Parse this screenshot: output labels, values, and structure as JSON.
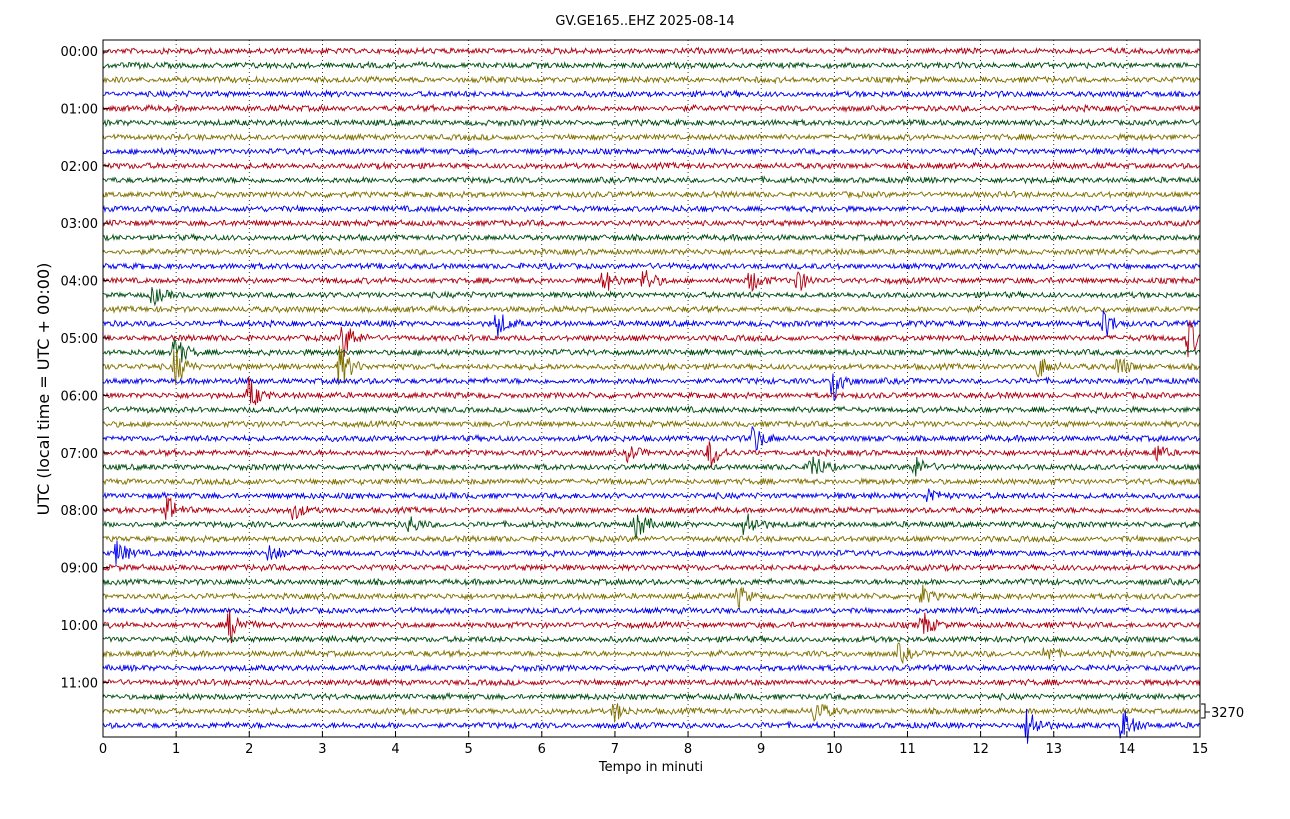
{
  "chart_data": {
    "type": "line",
    "subtype": "helicorder",
    "title": "GV.GE165..EHZ 2025-08-14",
    "xlabel": "Tempo in minuti",
    "ylabel": "UTC (local time = UTC + 00:00)",
    "xlim": [
      0,
      15
    ],
    "xticks": [
      "0",
      "1",
      "2",
      "3",
      "4",
      "5",
      "6",
      "7",
      "8",
      "9",
      "10",
      "11",
      "12",
      "13",
      "14",
      "15"
    ],
    "y_tick_labels": [
      "00:00",
      "01:00",
      "02:00",
      "03:00",
      "04:00",
      "05:00",
      "06:00",
      "07:00",
      "08:00",
      "09:00",
      "10:00",
      "11:00"
    ],
    "trace_count": 48,
    "trace_minutes": 15,
    "trace_colors": [
      "#b00010",
      "#004d10",
      "#807000",
      "#0000ee"
    ],
    "scale_label": "3270",
    "grid": "vertical dotted at each minute",
    "events": [
      {
        "trace": 17,
        "minute": 0.7,
        "amp": 1.0
      },
      {
        "trace": 19,
        "minute": 5.4,
        "amp": 1.4
      },
      {
        "trace": 19,
        "minute": 13.7,
        "amp": 1.6
      },
      {
        "trace": 20,
        "minute": 3.3,
        "amp": 2.0
      },
      {
        "trace": 20,
        "minute": 14.85,
        "amp": 2.2
      },
      {
        "trace": 21,
        "minute": 1.0,
        "amp": 1.8
      },
      {
        "trace": 22,
        "minute": 1.0,
        "amp": 2.2
      },
      {
        "trace": 22,
        "minute": 3.25,
        "amp": 2.6
      },
      {
        "trace": 22,
        "minute": 12.8,
        "amp": 1.3
      },
      {
        "trace": 22,
        "minute": 13.9,
        "amp": 1.2
      },
      {
        "trace": 23,
        "minute": 10.0,
        "amp": 2.4
      },
      {
        "trace": 24,
        "minute": 2.0,
        "amp": 2.0
      },
      {
        "trace": 27,
        "minute": 8.9,
        "amp": 1.6
      },
      {
        "trace": 28,
        "minute": 8.3,
        "amp": 1.8
      },
      {
        "trace": 28,
        "minute": 7.2,
        "amp": 1.0
      },
      {
        "trace": 28,
        "minute": 14.4,
        "amp": 1.0
      },
      {
        "trace": 29,
        "minute": 9.7,
        "amp": 1.7
      },
      {
        "trace": 29,
        "minute": 11.1,
        "amp": 1.2
      },
      {
        "trace": 31,
        "minute": 11.3,
        "amp": 1.0
      },
      {
        "trace": 32,
        "minute": 0.9,
        "amp": 1.4
      },
      {
        "trace": 32,
        "minute": 2.6,
        "amp": 1.0
      },
      {
        "trace": 33,
        "minute": 7.3,
        "amp": 1.6
      },
      {
        "trace": 33,
        "minute": 8.8,
        "amp": 1.6
      },
      {
        "trace": 33,
        "minute": 4.2,
        "amp": 1.0
      },
      {
        "trace": 35,
        "minute": 0.2,
        "amp": 1.4
      },
      {
        "trace": 35,
        "minute": 2.3,
        "amp": 1.0
      },
      {
        "trace": 38,
        "minute": 8.7,
        "amp": 1.1
      },
      {
        "trace": 38,
        "minute": 11.2,
        "amp": 1.2
      },
      {
        "trace": 40,
        "minute": 1.75,
        "amp": 1.9
      },
      {
        "trace": 40,
        "minute": 11.2,
        "amp": 1.5
      },
      {
        "trace": 42,
        "minute": 10.9,
        "amp": 1.1
      },
      {
        "trace": 42,
        "minute": 12.9,
        "amp": 1.0
      },
      {
        "trace": 46,
        "minute": 7.0,
        "amp": 1.1
      },
      {
        "trace": 46,
        "minute": 9.75,
        "amp": 1.4
      },
      {
        "trace": 47,
        "minute": 12.65,
        "amp": 2.2
      },
      {
        "trace": 47,
        "minute": 13.95,
        "amp": 1.9
      },
      {
        "trace": 16,
        "minute": 6.85,
        "amp": 1.4
      },
      {
        "trace": 16,
        "minute": 7.4,
        "amp": 1.4
      },
      {
        "trace": 16,
        "minute": 8.85,
        "amp": 1.3
      },
      {
        "trace": 16,
        "minute": 9.5,
        "amp": 1.3
      }
    ]
  }
}
